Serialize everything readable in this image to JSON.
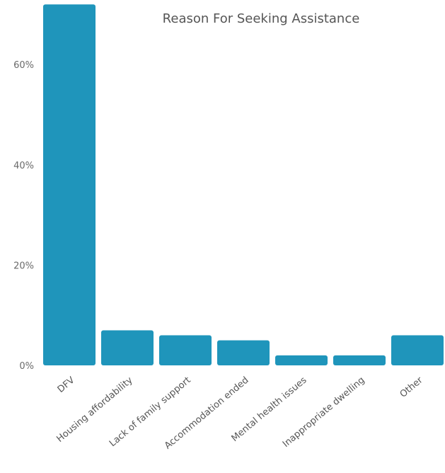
{
  "chart_data": {
    "type": "bar",
    "title": "Reason For Seeking Assistance",
    "xlabel": "",
    "ylabel": "",
    "categories": [
      "DFV",
      "Housing affordability",
      "Lack of family support",
      "Accommodation ended",
      "Mental health issues",
      "Inappropriate dwelling",
      "Other"
    ],
    "values": [
      72,
      7,
      6,
      5,
      2,
      2,
      6
    ],
    "value_unit": "%",
    "ylim": [
      0,
      72
    ],
    "yticks": [
      0,
      20,
      40,
      60
    ],
    "ytick_labels": [
      "0%",
      "20%",
      "40%",
      "60%"
    ],
    "grid": false,
    "legend": "none",
    "bar_color": "#1f95bb"
  }
}
